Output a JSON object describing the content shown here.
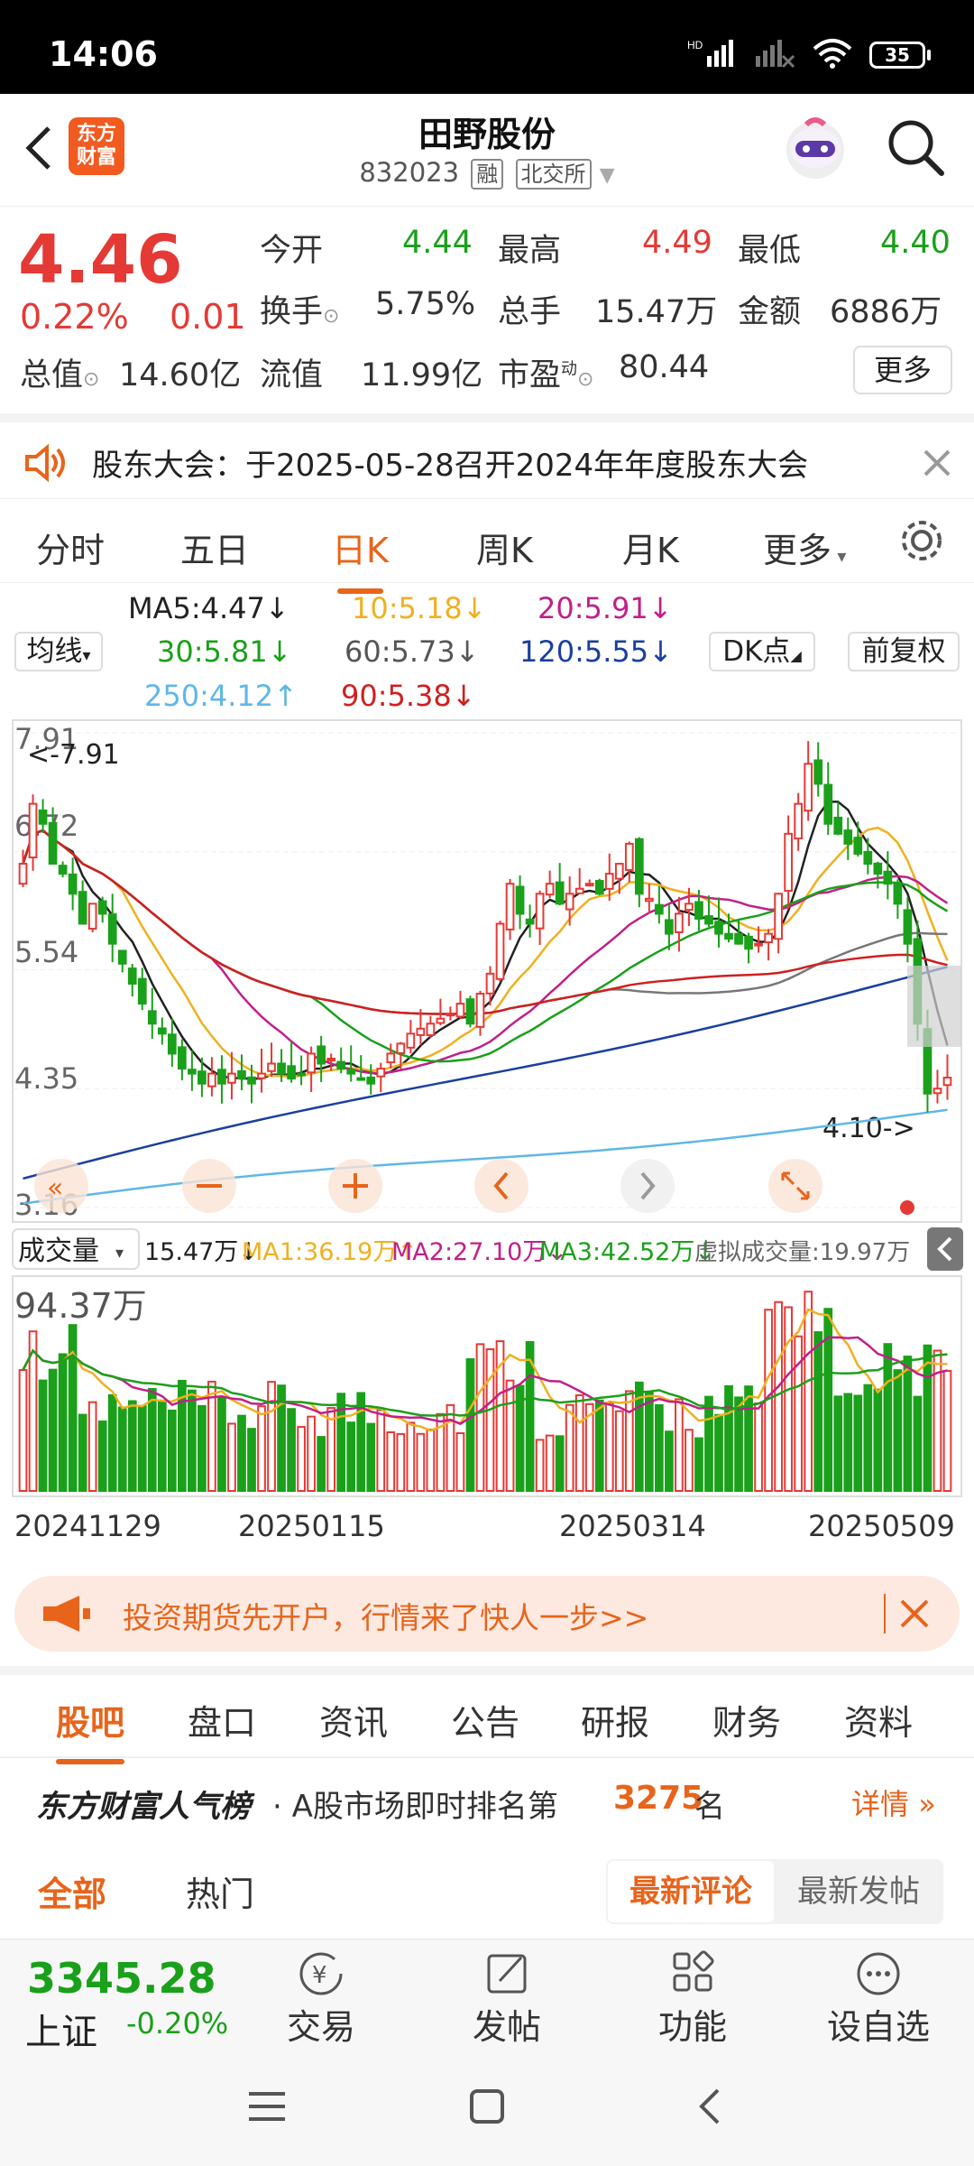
{
  "status": {
    "time": "14:06",
    "battery": "35"
  },
  "header": {
    "back_label": "back",
    "logo_text": "东方\n财富",
    "title": "田野股份",
    "code": "832023",
    "tag1": "融",
    "tag2": "北交所"
  },
  "quote": {
    "price": "4.46",
    "pct": "0.22%",
    "chg": "0.01",
    "open_label": "今开",
    "open": "4.44",
    "high_label": "最高",
    "high": "4.49",
    "low_label": "最低",
    "low": "4.40",
    "turnover_label": "换手",
    "turnover": "5.75%",
    "volume_label": "总手",
    "volume": "15.47万",
    "amount_label": "金额",
    "amount": "6886万",
    "mcap_label": "总值",
    "mcap": "14.60亿",
    "float_label": "流值",
    "float": "11.99亿",
    "pe_label": "市盈",
    "pe_sup": "动",
    "pe": "80.44",
    "more": "更多"
  },
  "notice": {
    "text": "股东大会：于2025-05-28召开2024年年度股东大会"
  },
  "tabs": [
    "分时",
    "五日",
    "日K",
    "周K",
    "月K",
    "更多"
  ],
  "ma_legend": {
    "ma5": "MA5:4.47↓",
    "ma10": "10:5.18↓",
    "ma20": "20:5.91↓",
    "ma30": "30:5.81↓",
    "ma60": "60:5.73↓",
    "ma120": "120:5.55↓",
    "ma250": "250:4.12↑",
    "ma90": "90:5.38↓",
    "btn_avg": "均线",
    "btn_dk": "DK点",
    "btn_adj": "前复权"
  },
  "chart_labels": {
    "y1": "7.91",
    "y2": "6.72",
    "y3": "5.54",
    "y4": "4.35",
    "y5": "3.16",
    "high_mark": "<-7.91",
    "low_mark": "4.10->"
  },
  "volume_legend": {
    "label": "成交量",
    "vol": "15.47万↓",
    "ma1": "MA1:36.19万↑",
    "ma2": "MA2:27.10万↓",
    "ma3": "MA3:42.52万↓",
    "virtual": "虚拟成交量:19.97万",
    "max": "94.37万"
  },
  "dates": [
    "20241129",
    "20250115",
    "20250314",
    "20250509"
  ],
  "ad": {
    "text": "投资期货先开户，行情来了快人一步>>"
  },
  "subtabs": [
    "股吧",
    "盘口",
    "资讯",
    "公告",
    "研报",
    "财务",
    "资料"
  ],
  "rank": {
    "title": "东方财富人气榜",
    "prefix": "· A股市场即时排名第",
    "num": "3275",
    "suffix": "名",
    "detail": "详情"
  },
  "filter": {
    "all": "全部",
    "hot": "热门",
    "latest_comment": "最新评论",
    "latest_post": "最新发帖"
  },
  "bottom": {
    "index_value": "3345.28",
    "index_name": "上证",
    "index_chg": "-0.20%",
    "trade": "交易",
    "post": "发帖",
    "func": "功能",
    "watch": "设自选"
  },
  "colors": {
    "accent": "#e8641b",
    "up": "#e53935",
    "down": "#1aa01a"
  },
  "chart_data": {
    "type": "candlestick",
    "ylim": [
      3.16,
      7.91
    ],
    "y_ticks": [
      7.91,
      6.72,
      5.54,
      4.35,
      3.16
    ],
    "x_ticks": [
      "20241129",
      "20250115",
      "20250314",
      "20250509"
    ],
    "close": [
      6.6,
      7.2,
      7.0,
      6.6,
      6.5,
      6.3,
      6.0,
      6.2,
      6.1,
      5.8,
      5.6,
      5.4,
      5.2,
      5.0,
      4.9,
      4.7,
      4.55,
      4.5,
      4.4,
      4.5,
      4.4,
      4.5,
      4.45,
      4.4,
      4.5,
      4.6,
      4.5,
      4.45,
      4.5,
      4.7,
      4.6,
      4.65,
      4.55,
      4.5,
      4.45,
      4.4,
      4.55,
      4.7,
      4.8,
      4.9,
      4.95,
      5.0,
      5.05,
      5.1,
      5.2,
      5.0,
      5.3,
      5.5,
      6.0,
      6.4,
      6.1,
      6.0,
      6.3,
      6.4,
      6.2,
      6.3,
      6.35,
      6.4,
      6.3,
      6.5,
      6.6,
      6.8,
      6.3,
      6.25,
      6.1,
      5.9,
      6.1,
      6.2,
      6.05,
      6.0,
      5.9,
      5.85,
      5.8,
      5.75,
      5.8,
      5.9,
      6.3,
      6.9,
      7.2,
      7.6,
      7.4,
      7.0,
      6.9,
      6.8,
      6.7,
      6.6,
      6.5,
      6.4,
      6.2,
      5.8,
      5.0,
      4.3,
      4.35,
      4.46
    ],
    "volume_max": "94.37万"
  }
}
